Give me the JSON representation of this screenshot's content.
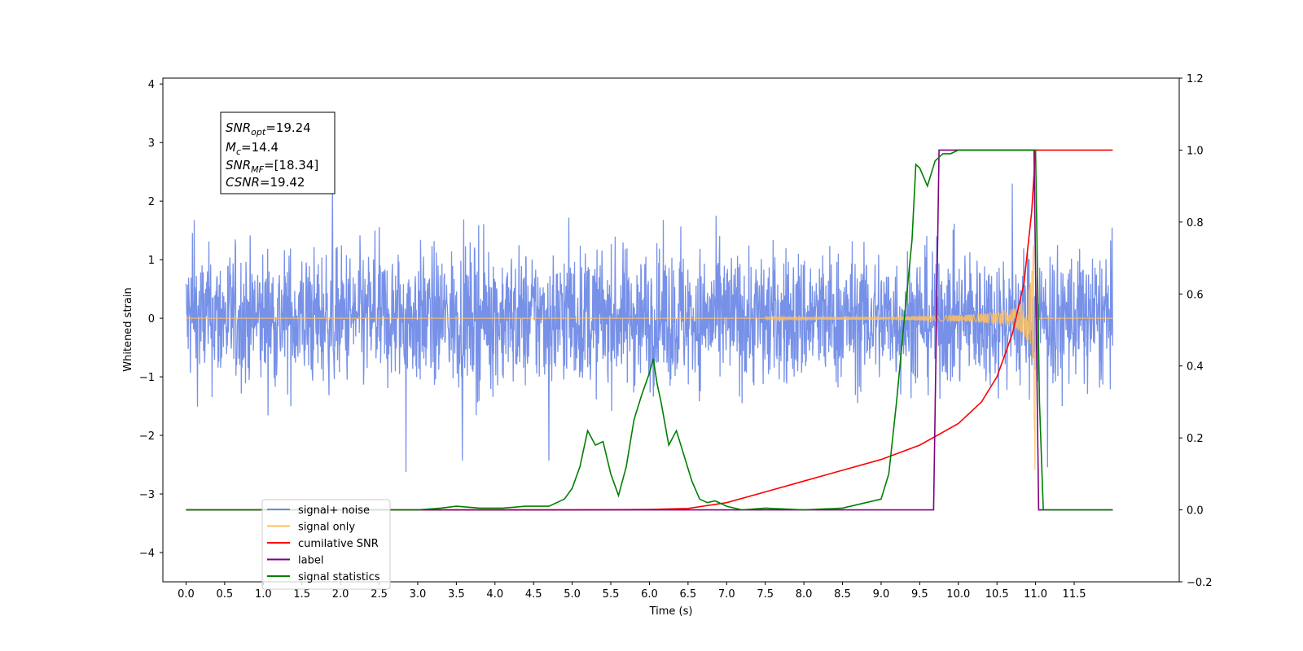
{
  "chart_data": {
    "type": "line",
    "xlabel": "Time (s)",
    "ylabel": "Whitened strain",
    "x_ticks": [
      "0.0",
      "0.5",
      "1.0",
      "1.5",
      "2.0",
      "2.5",
      "3.0",
      "3.5",
      "4.0",
      "4.5",
      "5.0",
      "5.5",
      "6.0",
      "6.5",
      "7.0",
      "7.5",
      "8.0",
      "8.5",
      "9.0",
      "9.5",
      "10.0",
      "10.5",
      "11.0",
      "11.5"
    ],
    "y_ticks": [
      "4",
      "3",
      "2",
      "1",
      "0",
      "−1",
      "−2",
      "−3",
      "−4"
    ],
    "y2_ticks": [
      "1.2",
      "1.0",
      "0.8",
      "0.6",
      "0.4",
      "0.2",
      "0.0",
      "−0.2"
    ],
    "xlim": [
      -0.3,
      12.86
    ],
    "ylim": [
      -4.5,
      4.1
    ],
    "y2lim": [
      -0.2,
      1.2
    ],
    "grid": false,
    "legend_position": "lower-left",
    "annotation": {
      "snr_opt": "19.24",
      "mc": "14.4",
      "snr_mf": "[18.34]",
      "csnr": "19.42"
    },
    "series": [
      {
        "name": "signal+ noise",
        "color": "#6b88e6",
        "axis": "left",
        "kind": "noise",
        "x_range": [
          0.0,
          12.0
        ],
        "typical_amplitude": [
          -2.4,
          2.4
        ]
      },
      {
        "name": "signal only",
        "color": "#ffbf5e",
        "axis": "left",
        "kind": "chirp",
        "x_range": [
          0.0,
          12.0
        ],
        "merger_time": 11.0,
        "peak_amplitude": 3.4
      },
      {
        "name": "cumilative SNR",
        "color": "#ff0000",
        "axis": "right",
        "x": [
          0.0,
          5.0,
          6.0,
          6.5,
          7.0,
          7.5,
          8.0,
          8.5,
          9.0,
          9.5,
          10.0,
          10.3,
          10.5,
          10.7,
          10.85,
          10.95,
          11.0,
          11.5,
          12.0
        ],
        "y": [
          0.0,
          0.0,
          0.001,
          0.004,
          0.02,
          0.05,
          0.08,
          0.11,
          0.14,
          0.18,
          0.24,
          0.3,
          0.37,
          0.49,
          0.63,
          0.83,
          1.0,
          1.0,
          1.0
        ]
      },
      {
        "name": "label",
        "color": "#800080",
        "axis": "right",
        "x": [
          0.0,
          9.68,
          9.75,
          10.98,
          11.04,
          11.1,
          12.0
        ],
        "y": [
          0.0,
          0.0,
          1.0,
          1.0,
          0.0,
          0.0,
          0.0
        ]
      },
      {
        "name": "signal statistics",
        "color": "#008000",
        "axis": "right",
        "x": [
          0.0,
          3.0,
          3.3,
          3.5,
          3.8,
          4.1,
          4.4,
          4.7,
          4.9,
          5.0,
          5.1,
          5.2,
          5.3,
          5.4,
          5.5,
          5.6,
          5.7,
          5.8,
          5.9,
          6.0,
          6.05,
          6.1,
          6.15,
          6.25,
          6.35,
          6.45,
          6.55,
          6.65,
          6.75,
          6.85,
          7.0,
          7.2,
          7.5,
          8.0,
          8.5,
          9.0,
          9.1,
          9.2,
          9.3,
          9.4,
          9.45,
          9.5,
          9.6,
          9.7,
          9.75,
          9.8,
          9.9,
          10.0,
          10.2,
          11.0,
          11.05,
          11.1,
          12.0
        ],
        "y": [
          0.0,
          0.0,
          0.005,
          0.01,
          0.005,
          0.005,
          0.01,
          0.01,
          0.03,
          0.06,
          0.12,
          0.22,
          0.18,
          0.19,
          0.1,
          0.04,
          0.12,
          0.25,
          0.32,
          0.38,
          0.42,
          0.35,
          0.3,
          0.18,
          0.22,
          0.15,
          0.08,
          0.03,
          0.02,
          0.025,
          0.01,
          0.0,
          0.005,
          0.0,
          0.005,
          0.03,
          0.1,
          0.3,
          0.53,
          0.75,
          0.96,
          0.95,
          0.9,
          0.97,
          0.98,
          0.99,
          0.99,
          1.0,
          1.0,
          1.0,
          0.3,
          0.0,
          0.0
        ]
      }
    ]
  }
}
